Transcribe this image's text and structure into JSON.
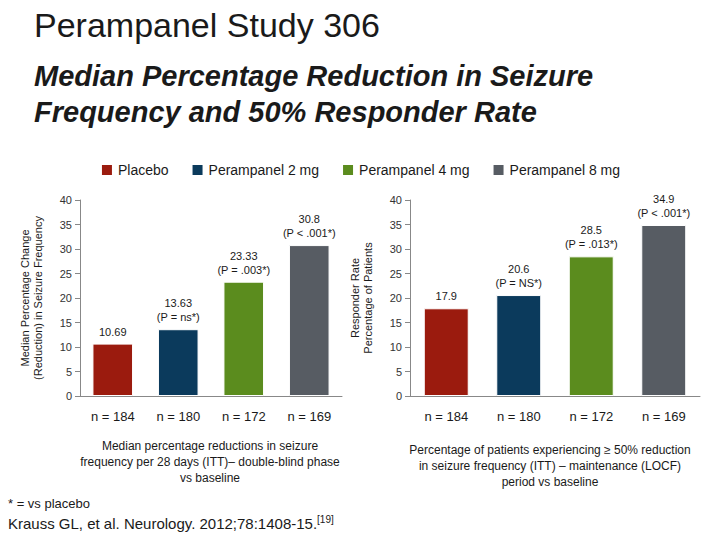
{
  "title": "Perampanel Study 306",
  "subtitle": "Median Percentage Reduction in Seizure Frequency and 50% Responder Rate",
  "footnote": "* = vs placebo",
  "citation": {
    "text": "Krauss GL, et al. Neurology. 2012;78:1408-15.",
    "ref": "[19]"
  },
  "chart_data": [
    {
      "type": "bar",
      "y_label": "Median Percentage Change\n(Reduction) in Seizure Frequency",
      "caption": "Median percentage reductions in seizure frequency per 28 days (ITT)– double-blind phase vs baseline",
      "categories": [
        "n = 184",
        "n = 180",
        "n = 172",
        "n = 169"
      ],
      "ylim": [
        0,
        40
      ],
      "yticks": [
        0,
        5,
        10,
        15,
        20,
        25,
        30,
        35,
        40
      ],
      "grid": false,
      "legend": "top",
      "data_labels": true,
      "series": [
        {
          "name": "Placebo",
          "color": "#9b1b0e",
          "values": [
            10.69,
            null,
            null,
            null
          ]
        },
        {
          "name": "Perampanel 2 mg",
          "color": "#0b3a5c",
          "values": [
            null,
            13.63,
            null,
            null
          ],
          "annotation": "(P = ns*)"
        },
        {
          "name": "Perampanel 4 mg",
          "color": "#5b8c1e",
          "values": [
            null,
            null,
            23.33,
            null
          ],
          "annotation": "(P = .003*)"
        },
        {
          "name": "Perampanel 8 mg",
          "color": "#575c63",
          "values": [
            null,
            null,
            null,
            30.8
          ],
          "annotation": "(P < .001*)"
        }
      ]
    },
    {
      "type": "bar",
      "y_label": "Responder Rate\nPercentage of Patients",
      "caption": "Percentage of patients experiencing ≥ 50% reduction in seizure frequency (ITT) – maintenance (LOCF) period vs baseline",
      "categories": [
        "n = 184",
        "n = 180",
        "n = 172",
        "n = 169"
      ],
      "ylim": [
        0,
        40
      ],
      "yticks": [
        0,
        5,
        10,
        15,
        20,
        25,
        30,
        35,
        40
      ],
      "grid": false,
      "legend": "top",
      "data_labels": true,
      "series": [
        {
          "name": "Placebo",
          "color": "#9b1b0e",
          "values": [
            17.9,
            null,
            null,
            null
          ]
        },
        {
          "name": "Perampanel 2 mg",
          "color": "#0b3a5c",
          "values": [
            null,
            20.6,
            null,
            null
          ],
          "annotation": "(P = NS*)"
        },
        {
          "name": "Perampanel 4 mg",
          "color": "#5b8c1e",
          "values": [
            null,
            null,
            28.5,
            null
          ],
          "annotation": "(P = .013*)"
        },
        {
          "name": "Perampanel 8 mg",
          "color": "#575c63",
          "values": [
            null,
            null,
            null,
            34.9
          ],
          "annotation": "(P < .001*)"
        }
      ]
    }
  ]
}
